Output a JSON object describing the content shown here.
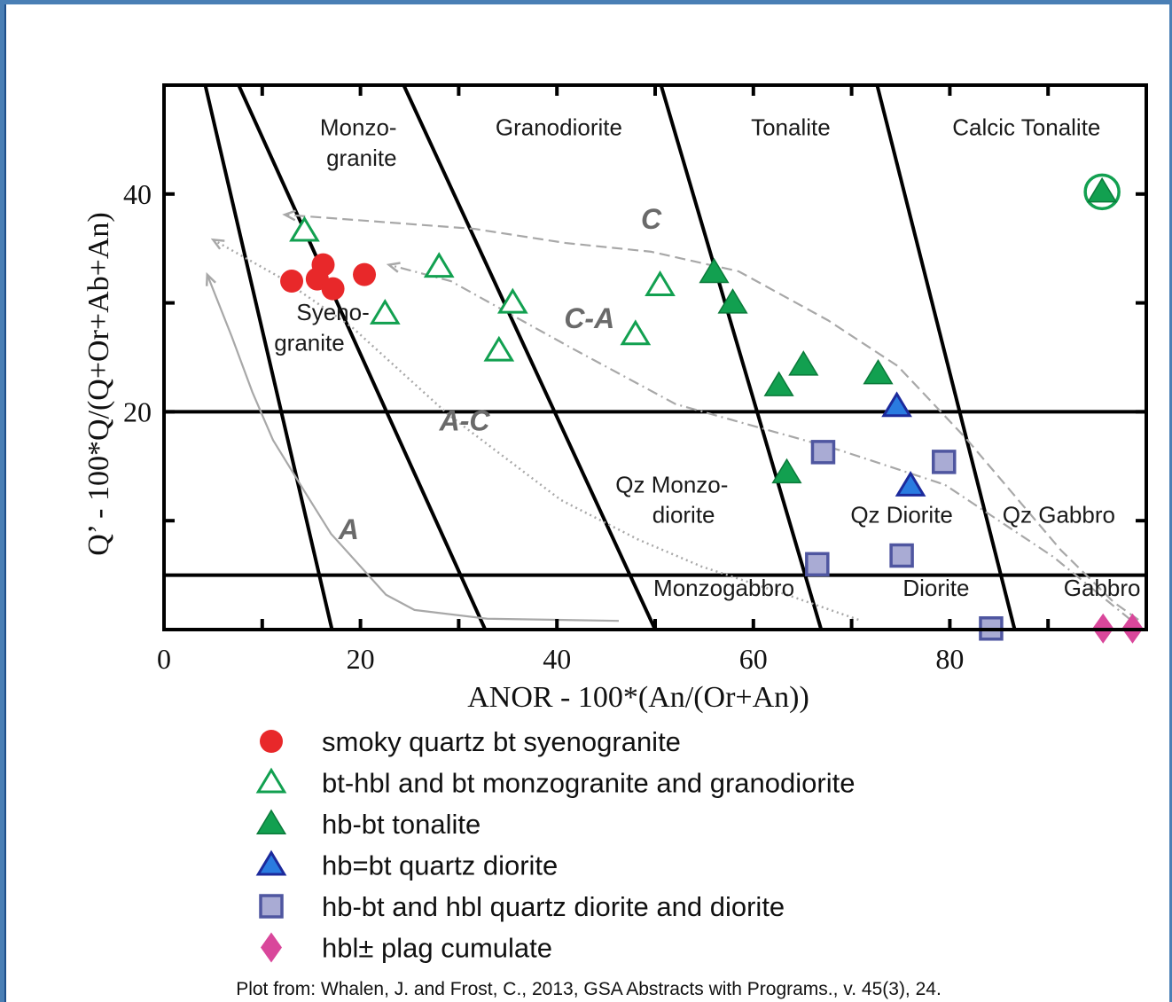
{
  "colors": {
    "frame_background": "#4a7fb5",
    "plot_line": "#000000",
    "trend_line": "#a8a8a8",
    "red": "#e8282a",
    "green": "#12a050",
    "blue_fill": "#2a7be0",
    "blue_edge": "#1c2a9c",
    "square_fill": "#a9abd4",
    "square_edge": "#4f56a0",
    "magenta": "#d9479b"
  },
  "chart_data": {
    "type": "scatter",
    "xlabel": "ANOR - 100*(An/(Or+An))",
    "ylabel": "Q’ - 100*Q/(Q+Or+Ab+An)",
    "xlim": [
      0,
      100
    ],
    "ylim": [
      0,
      50
    ],
    "x_ticks": [
      0,
      20,
      40,
      60,
      80
    ],
    "y_ticks": [
      20,
      40
    ],
    "boundary_lines": [
      {
        "x": [
          4.2,
          17.1
        ],
        "y": [
          50,
          0
        ]
      },
      {
        "x": [
          7.6,
          32.7
        ],
        "y": [
          50,
          0
        ]
      },
      {
        "x": [
          24.4,
          50.0
        ],
        "y": [
          50,
          0
        ]
      },
      {
        "x": [
          50.6,
          66.9
        ],
        "y": [
          50,
          0
        ]
      },
      {
        "x": [
          72.6,
          86.6
        ],
        "y": [
          50,
          0
        ]
      },
      {
        "x": [
          0,
          100
        ],
        "y": [
          20,
          20
        ]
      },
      {
        "x": [
          0,
          100
        ],
        "y": [
          5,
          5
        ]
      }
    ],
    "region_labels": [
      {
        "lines": [
          "Monzo-",
          "granite"
        ],
        "x": [
          23.7,
          23.7
        ],
        "y": [
          45.4,
          42.6
        ],
        "anchor": "end"
      },
      {
        "lines": [
          "Granodiorite"
        ],
        "x": [
          40.2
        ],
        "y": [
          45.4
        ],
        "anchor": "middle"
      },
      {
        "lines": [
          "Tonalite"
        ],
        "x": [
          63.8
        ],
        "y": [
          45.4
        ],
        "anchor": "middle"
      },
      {
        "lines": [
          "Calcic Tonalite"
        ],
        "x": [
          87.8
        ],
        "y": [
          45.4
        ],
        "anchor": "middle"
      },
      {
        "lines": [
          "Syeno-",
          "granite"
        ],
        "x": [
          17.2,
          14.8
        ],
        "y": [
          28.4,
          25.6
        ],
        "anchor": "middle"
      },
      {
        "lines": [
          "Qz Monzo-",
          "diorite"
        ],
        "x": [
          51.7,
          52.9
        ],
        "y": [
          12.6,
          9.8
        ],
        "anchor": "middle"
      },
      {
        "lines": [
          "Qz Diorite"
        ],
        "x": [
          75.1
        ],
        "y": [
          9.8
        ],
        "anchor": "middle"
      },
      {
        "lines": [
          "Qz Gabbro"
        ],
        "x": [
          91.1
        ],
        "y": [
          9.8
        ],
        "anchor": "middle"
      },
      {
        "lines": [
          "Monzogabbro"
        ],
        "x": [
          57.0
        ],
        "y": [
          3.1
        ],
        "anchor": "middle"
      },
      {
        "lines": [
          "Diorite"
        ],
        "x": [
          78.6
        ],
        "y": [
          3.1
        ],
        "anchor": "middle"
      },
      {
        "lines": [
          "Gabbro"
        ],
        "x": [
          95.5
        ],
        "y": [
          3.1
        ],
        "anchor": "middle"
      }
    ],
    "trends": [
      {
        "name": "A",
        "style": "solid",
        "points": [
          [
            46.3,
            0.8
          ],
          [
            32.9,
            1.0
          ],
          [
            25.5,
            1.8
          ],
          [
            22.6,
            3.2
          ],
          [
            17.0,
            8.8
          ],
          [
            14.3,
            12.7
          ],
          [
            11.1,
            17.4
          ],
          [
            9.0,
            21.8
          ],
          [
            6.9,
            26.9
          ],
          [
            4.4,
            32.6
          ]
        ],
        "label": {
          "text": "A",
          "x": 18.8,
          "y": 8.3
        }
      },
      {
        "name": "A-C",
        "style": "dotted",
        "points": [
          [
            70.7,
            0.9
          ],
          [
            63.4,
            3.2
          ],
          [
            54.7,
            5.8
          ],
          [
            48.2,
            8.3
          ],
          [
            40.4,
            11.9
          ],
          [
            29.0,
            19.7
          ],
          [
            19.1,
            27.8
          ],
          [
            11.7,
            32.4
          ],
          [
            5.0,
            35.8
          ]
        ],
        "label": {
          "text": "A-C",
          "x": 30.6,
          "y": 18.3
        }
      },
      {
        "name": "C-A",
        "style": "dashdot",
        "points": [
          [
            98.4,
            0.9
          ],
          [
            90.5,
            6.7
          ],
          [
            79.5,
            13.3
          ],
          [
            68.7,
            16.5
          ],
          [
            52.1,
            20.7
          ],
          [
            41.6,
            25.8
          ],
          [
            29.2,
            32.0
          ],
          [
            22.9,
            33.5
          ]
        ],
        "label": {
          "text": "C-A",
          "x": 43.3,
          "y": 27.7
        }
      },
      {
        "name": "C",
        "style": "dashed",
        "points": [
          [
            99.2,
            0.9
          ],
          [
            96.7,
            2.5
          ],
          [
            91.3,
            7.3
          ],
          [
            81.7,
            17.5
          ],
          [
            74.7,
            24.2
          ],
          [
            67.6,
            28.4
          ],
          [
            58.5,
            32.9
          ],
          [
            49.6,
            34.7
          ],
          [
            40.9,
            35.5
          ],
          [
            31.6,
            36.8
          ],
          [
            12.3,
            38.1
          ]
        ],
        "label": {
          "text": "C",
          "x": 49.6,
          "y": 36.8
        }
      }
    ],
    "series": [
      {
        "name": "smoky quartz bt syenogranite",
        "marker": "circle",
        "points": [
          [
            13.0,
            32.0
          ],
          [
            16.2,
            33.5
          ],
          [
            15.6,
            32.2
          ],
          [
            17.2,
            31.3
          ],
          [
            20.4,
            32.6
          ]
        ]
      },
      {
        "name": "bt-hbl and bt monzogranite and granodiorite",
        "marker": "triangle-open",
        "points": [
          [
            14.3,
            36.6
          ],
          [
            28.0,
            33.3
          ],
          [
            22.5,
            29.0
          ],
          [
            35.5,
            30.0
          ],
          [
            34.1,
            25.6
          ],
          [
            48.0,
            27.1
          ],
          [
            50.5,
            31.6
          ]
        ]
      },
      {
        "name": "hb-bt tonalite",
        "marker": "triangle",
        "points": [
          [
            56.0,
            32.8
          ],
          [
            57.9,
            30.0
          ],
          [
            62.6,
            22.4
          ],
          [
            65.1,
            24.3
          ],
          [
            72.7,
            23.5
          ],
          [
            63.4,
            14.4
          ],
          [
            95.5,
            40.2
          ]
        ]
      },
      {
        "name": "hb=bt quartz diorite",
        "marker": "triangle-blue",
        "points": [
          [
            74.6,
            20.5
          ],
          [
            76.0,
            13.2
          ]
        ]
      },
      {
        "name": "hb-bt and hbl quartz diorite and diorite",
        "marker": "square",
        "points": [
          [
            67.1,
            16.3
          ],
          [
            79.4,
            15.4
          ],
          [
            66.5,
            6.0
          ],
          [
            75.1,
            6.8
          ],
          [
            84.2,
            0.1
          ]
        ]
      },
      {
        "name": "hbl± plag cumulate",
        "marker": "diamond",
        "points": [
          [
            95.6,
            0.1
          ],
          [
            98.6,
            0.1
          ]
        ]
      }
    ]
  },
  "legend": [
    {
      "label": "smoky quartz bt syenogranite",
      "marker": "circle"
    },
    {
      "label": "bt-hbl and bt monzogranite and granodiorite",
      "marker": "triangle-open"
    },
    {
      "label": "hb-bt tonalite",
      "marker": "triangle"
    },
    {
      "label": "hb=bt quartz diorite",
      "marker": "triangle-blue"
    },
    {
      "label": "hb-bt and hbl quartz diorite and diorite",
      "marker": "square"
    },
    {
      "label": "hbl± plag cumulate",
      "marker": "diamond"
    }
  ],
  "credit": "Plot from: Whalen, J. and Frost, C., 2013, GSA Abstracts with Programs., v. 45(3), 24."
}
